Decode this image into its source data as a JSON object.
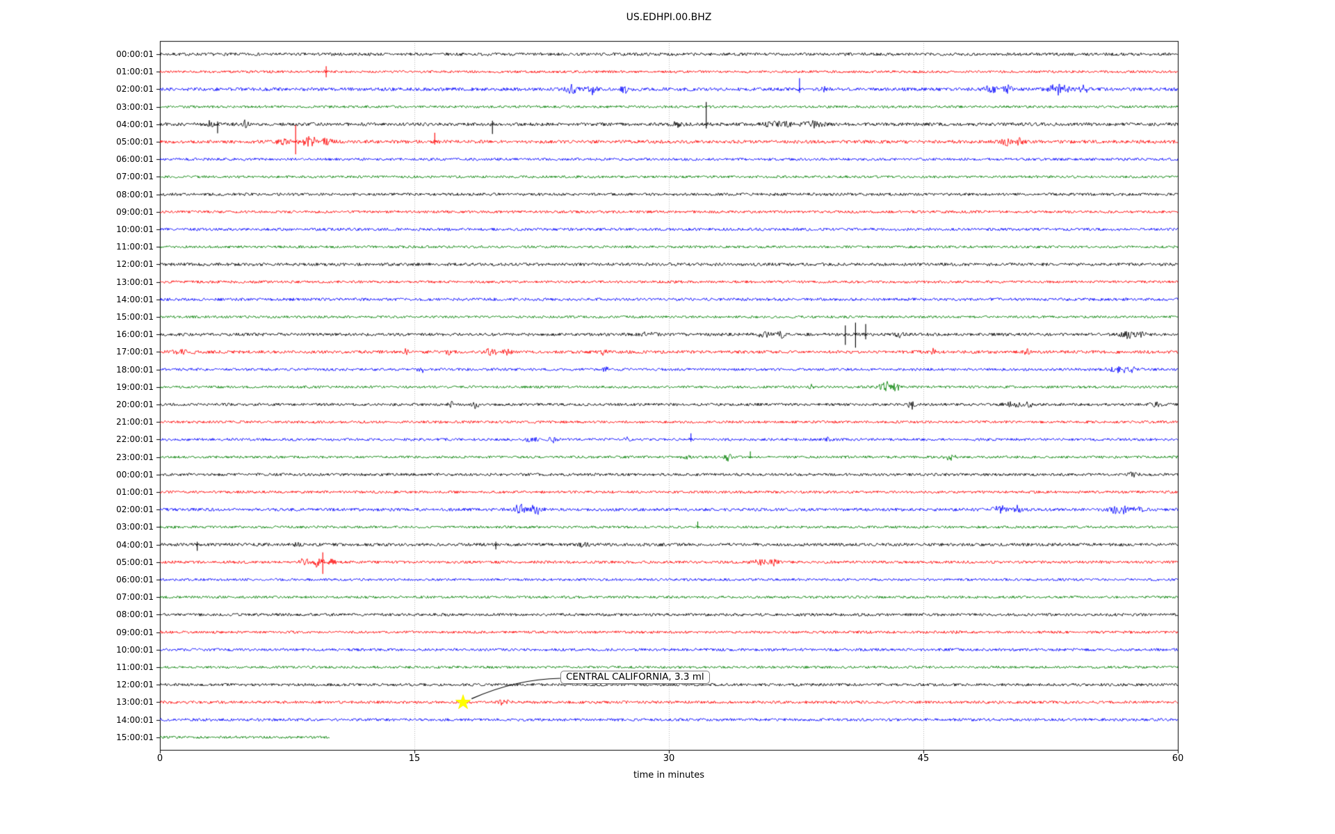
{
  "page_title": "US.EDHPI.00.BHZ",
  "chart_data": {
    "type": "line",
    "subtype": "seismogram-dayplot",
    "title": "US.EDHPI.00.BHZ",
    "xlabel": "time in minutes",
    "xlim": [
      0,
      60
    ],
    "x_ticks": [
      0,
      15,
      30,
      45,
      60
    ],
    "grid_minutes": [
      15,
      30,
      45
    ],
    "grid_color": "#b3b3b3",
    "color_cycle": [
      "#000000",
      "#ff0000",
      "#0000ff",
      "#008000"
    ],
    "annotation": {
      "text": "CENTRAL CALIFORNIA, 3.3 ml",
      "marker": "yellow-star",
      "marker_color": "#ffff00",
      "row_index": 37,
      "row_label": "13:00:01",
      "minute": 18
    },
    "rows": [
      {
        "label": "00:00:01",
        "color": "#000000",
        "noise": 2.2,
        "events": []
      },
      {
        "label": "01:00:01",
        "color": "#ff0000",
        "noise": 1.8,
        "events": [
          {
            "type": "spike",
            "t": 9.8,
            "up": 8,
            "down": 8
          }
        ]
      },
      {
        "label": "02:00:01",
        "color": "#0000ff",
        "noise": 2.4,
        "events": [
          {
            "type": "burst",
            "t": 24.3,
            "a": 6,
            "w": 0.5
          },
          {
            "type": "burst",
            "t": 25.4,
            "a": 8,
            "w": 0.4
          },
          {
            "type": "burst",
            "t": 27.4,
            "a": 6,
            "w": 0.3
          },
          {
            "type": "spike",
            "t": 37.7,
            "up": 16,
            "down": 5
          },
          {
            "type": "burst",
            "t": 39.2,
            "a": 5,
            "w": 0.3
          },
          {
            "type": "burst",
            "t": 49.0,
            "a": 6,
            "w": 0.5
          },
          {
            "type": "burst",
            "t": 50.0,
            "a": 5,
            "w": 0.4
          },
          {
            "type": "burst",
            "t": 53.0,
            "a": 8,
            "w": 0.8
          },
          {
            "type": "burst",
            "t": 54.5,
            "a": 6,
            "w": 0.5
          }
        ]
      },
      {
        "label": "03:00:01",
        "color": "#008000",
        "noise": 1.8,
        "events": []
      },
      {
        "label": "04:00:01",
        "color": "#000000",
        "noise": 2.4,
        "events": [
          {
            "type": "burst",
            "t": 3.0,
            "a": 6,
            "w": 0.25
          },
          {
            "type": "spike",
            "t": 3.4,
            "up": 4,
            "down": 13
          },
          {
            "type": "burst",
            "t": 5.0,
            "a": 5,
            "w": 0.3
          },
          {
            "type": "spike",
            "t": 19.6,
            "up": 5,
            "down": 14
          },
          {
            "type": "burst",
            "t": 30.5,
            "a": 3,
            "w": 0.5
          },
          {
            "type": "spike",
            "t": 32.2,
            "up": 32,
            "down": 6
          },
          {
            "type": "burst",
            "t": 36.5,
            "a": 4,
            "w": 1.2
          },
          {
            "type": "burst",
            "t": 38.5,
            "a": 4,
            "w": 1.0
          }
        ]
      },
      {
        "label": "05:00:01",
        "color": "#ff0000",
        "noise": 2.4,
        "events": [
          {
            "type": "burst",
            "t": 7.3,
            "a": 7,
            "w": 0.5
          },
          {
            "type": "spike",
            "t": 8.0,
            "up": 24,
            "down": 18
          },
          {
            "type": "burst",
            "t": 8.8,
            "a": 9,
            "w": 0.6
          },
          {
            "type": "burst",
            "t": 9.9,
            "a": 6,
            "w": 0.4
          },
          {
            "type": "spike",
            "t": 16.2,
            "up": 13,
            "down": 4
          },
          {
            "type": "burst",
            "t": 49.9,
            "a": 7,
            "w": 0.5
          },
          {
            "type": "burst",
            "t": 50.7,
            "a": 5,
            "w": 0.3
          }
        ]
      },
      {
        "label": "06:00:01",
        "color": "#0000ff",
        "noise": 1.9,
        "events": []
      },
      {
        "label": "07:00:01",
        "color": "#008000",
        "noise": 1.8,
        "events": []
      },
      {
        "label": "08:00:01",
        "color": "#000000",
        "noise": 2.0,
        "events": []
      },
      {
        "label": "09:00:01",
        "color": "#ff0000",
        "noise": 1.9,
        "events": []
      },
      {
        "label": "10:00:01",
        "color": "#0000ff",
        "noise": 2.0,
        "events": []
      },
      {
        "label": "11:00:01",
        "color": "#008000",
        "noise": 1.8,
        "events": []
      },
      {
        "label": "12:00:01",
        "color": "#000000",
        "noise": 2.2,
        "events": []
      },
      {
        "label": "13:00:01",
        "color": "#ff0000",
        "noise": 1.9,
        "events": []
      },
      {
        "label": "14:00:01",
        "color": "#0000ff",
        "noise": 2.1,
        "events": []
      },
      {
        "label": "15:00:01",
        "color": "#008000",
        "noise": 1.8,
        "events": []
      },
      {
        "label": "16:00:01",
        "color": "#000000",
        "noise": 2.2,
        "events": [
          {
            "type": "burst",
            "t": 28.8,
            "a": 4,
            "w": 0.6
          },
          {
            "type": "burst",
            "t": 35.6,
            "a": 5,
            "w": 0.7
          },
          {
            "type": "burst",
            "t": 36.6,
            "a": 5,
            "w": 0.4
          },
          {
            "type": "spike",
            "t": 40.4,
            "up": 13,
            "down": 15
          },
          {
            "type": "spike",
            "t": 41.0,
            "up": 17,
            "down": 19
          },
          {
            "type": "spike",
            "t": 41.6,
            "up": 15,
            "down": 7
          },
          {
            "type": "burst",
            "t": 43.6,
            "a": 4,
            "w": 0.4
          },
          {
            "type": "burst",
            "t": 57.0,
            "a": 6,
            "w": 0.5
          },
          {
            "type": "burst",
            "t": 57.8,
            "a": 6,
            "w": 0.4
          }
        ]
      },
      {
        "label": "17:00:01",
        "color": "#ff0000",
        "noise": 2.2,
        "events": [
          {
            "type": "burst",
            "t": 1.5,
            "a": 4,
            "w": 0.8
          },
          {
            "type": "burst",
            "t": 14.5,
            "a": 5,
            "w": 0.2
          },
          {
            "type": "burst",
            "t": 17.0,
            "a": 7,
            "w": 0.25
          },
          {
            "type": "burst",
            "t": 19.5,
            "a": 6,
            "w": 0.5
          },
          {
            "type": "burst",
            "t": 20.5,
            "a": 5,
            "w": 0.3
          },
          {
            "type": "burst",
            "t": 26.2,
            "a": 6,
            "w": 0.25
          },
          {
            "type": "burst",
            "t": 45.6,
            "a": 5,
            "w": 0.2
          },
          {
            "type": "burst",
            "t": 51.1,
            "a": 7,
            "w": 0.2
          }
        ]
      },
      {
        "label": "18:00:01",
        "color": "#0000ff",
        "noise": 1.9,
        "events": [
          {
            "type": "burst",
            "t": 15.4,
            "a": 5,
            "w": 0.3
          },
          {
            "type": "burst",
            "t": 26.3,
            "a": 4,
            "w": 0.3
          },
          {
            "type": "burst",
            "t": 56.5,
            "a": 5,
            "w": 0.8
          },
          {
            "type": "burst",
            "t": 57.5,
            "a": 4,
            "w": 0.5
          }
        ]
      },
      {
        "label": "19:00:01",
        "color": "#008000",
        "noise": 1.8,
        "events": [
          {
            "type": "burst",
            "t": 38.4,
            "a": 4,
            "w": 0.15
          },
          {
            "type": "burst",
            "t": 42.7,
            "a": 9,
            "w": 0.5
          },
          {
            "type": "burst",
            "t": 43.4,
            "a": 7,
            "w": 0.3
          }
        ]
      },
      {
        "label": "20:00:01",
        "color": "#000000",
        "noise": 2.0,
        "events": [
          {
            "type": "burst",
            "t": 17.3,
            "a": 5,
            "w": 0.4
          },
          {
            "type": "burst",
            "t": 18.6,
            "a": 5,
            "w": 0.3
          },
          {
            "type": "burst",
            "t": 44.3,
            "a": 6,
            "w": 0.3
          },
          {
            "type": "burst",
            "t": 50.3,
            "a": 5,
            "w": 0.6
          },
          {
            "type": "burst",
            "t": 51.2,
            "a": 4,
            "w": 0.4
          },
          {
            "type": "burst",
            "t": 58.7,
            "a": 5,
            "w": 0.4
          }
        ]
      },
      {
        "label": "21:00:01",
        "color": "#ff0000",
        "noise": 1.9,
        "events": []
      },
      {
        "label": "22:00:01",
        "color": "#0000ff",
        "noise": 1.9,
        "events": [
          {
            "type": "burst",
            "t": 21.8,
            "a": 4,
            "w": 0.6
          },
          {
            "type": "burst",
            "t": 23.2,
            "a": 4,
            "w": 0.4
          },
          {
            "type": "burst",
            "t": 27.5,
            "a": 3,
            "w": 0.3
          },
          {
            "type": "spike",
            "t": 31.3,
            "up": 9,
            "down": 3
          },
          {
            "type": "burst",
            "t": 39.4,
            "a": 3,
            "w": 0.3
          }
        ]
      },
      {
        "label": "23:00:01",
        "color": "#008000",
        "noise": 1.8,
        "events": [
          {
            "type": "burst",
            "t": 31.0,
            "a": 5,
            "w": 0.3
          },
          {
            "type": "burst",
            "t": 33.5,
            "a": 6,
            "w": 0.3
          },
          {
            "type": "spike",
            "t": 34.8,
            "up": 8,
            "down": 2
          },
          {
            "type": "burst",
            "t": 46.6,
            "a": 5,
            "w": 0.4
          }
        ]
      },
      {
        "label": "00:00:01",
        "color": "#000000",
        "noise": 2.0,
        "events": [
          {
            "type": "burst",
            "t": 57.5,
            "a": 6,
            "w": 0.4
          }
        ]
      },
      {
        "label": "01:00:01",
        "color": "#ff0000",
        "noise": 1.9,
        "events": []
      },
      {
        "label": "02:00:01",
        "color": "#0000ff",
        "noise": 2.2,
        "events": [
          {
            "type": "burst",
            "t": 21.2,
            "a": 7,
            "w": 0.5
          },
          {
            "type": "burst",
            "t": 22.2,
            "a": 8,
            "w": 0.5
          },
          {
            "type": "burst",
            "t": 49.5,
            "a": 7,
            "w": 0.6
          },
          {
            "type": "burst",
            "t": 50.6,
            "a": 6,
            "w": 0.4
          },
          {
            "type": "burst",
            "t": 56.5,
            "a": 8,
            "w": 0.7
          },
          {
            "type": "burst",
            "t": 57.6,
            "a": 5,
            "w": 0.4
          }
        ]
      },
      {
        "label": "03:00:01",
        "color": "#008000",
        "noise": 1.8,
        "events": [
          {
            "type": "spike",
            "t": 31.7,
            "up": 8,
            "down": 2
          }
        ]
      },
      {
        "label": "04:00:01",
        "color": "#000000",
        "noise": 2.2,
        "events": [
          {
            "type": "spike",
            "t": 2.2,
            "up": 4,
            "down": 9
          },
          {
            "type": "burst",
            "t": 8.0,
            "a": 3,
            "w": 0.4
          },
          {
            "type": "spike",
            "t": 19.8,
            "up": 4,
            "down": 7
          },
          {
            "type": "burst",
            "t": 25.0,
            "a": 3,
            "w": 0.4
          }
        ]
      },
      {
        "label": "05:00:01",
        "color": "#ff0000",
        "noise": 2.0,
        "events": [
          {
            "type": "burst",
            "t": 8.5,
            "a": 7,
            "w": 0.4
          },
          {
            "type": "burst",
            "t": 9.3,
            "a": 9,
            "w": 0.4
          },
          {
            "type": "spike",
            "t": 9.6,
            "up": 14,
            "down": 17
          },
          {
            "type": "burst",
            "t": 10.1,
            "a": 5,
            "w": 0.3
          },
          {
            "type": "burst",
            "t": 35.3,
            "a": 8,
            "w": 0.5
          },
          {
            "type": "burst",
            "t": 36.2,
            "a": 5,
            "w": 0.4
          }
        ]
      },
      {
        "label": "06:00:01",
        "color": "#0000ff",
        "noise": 1.8,
        "events": []
      },
      {
        "label": "07:00:01",
        "color": "#008000",
        "noise": 1.8,
        "events": []
      },
      {
        "label": "08:00:01",
        "color": "#000000",
        "noise": 2.0,
        "events": []
      },
      {
        "label": "09:00:01",
        "color": "#ff0000",
        "noise": 1.9,
        "events": [
          {
            "type": "burst",
            "t": 47.0,
            "a": 3,
            "w": 0.3
          }
        ]
      },
      {
        "label": "10:00:01",
        "color": "#0000ff",
        "noise": 2.0,
        "events": []
      },
      {
        "label": "11:00:01",
        "color": "#008000",
        "noise": 1.8,
        "events": []
      },
      {
        "label": "12:00:01",
        "color": "#000000",
        "noise": 2.0,
        "events": []
      },
      {
        "label": "13:00:01",
        "color": "#ff0000",
        "noise": 2.0,
        "events": [
          {
            "type": "burst",
            "t": 20.3,
            "a": 6,
            "w": 0.4
          }
        ]
      },
      {
        "label": "14:00:01",
        "color": "#0000ff",
        "noise": 2.0,
        "events": []
      },
      {
        "label": "15:00:01",
        "color": "#008000",
        "noise": 1.8,
        "end": 10,
        "events": []
      }
    ]
  }
}
